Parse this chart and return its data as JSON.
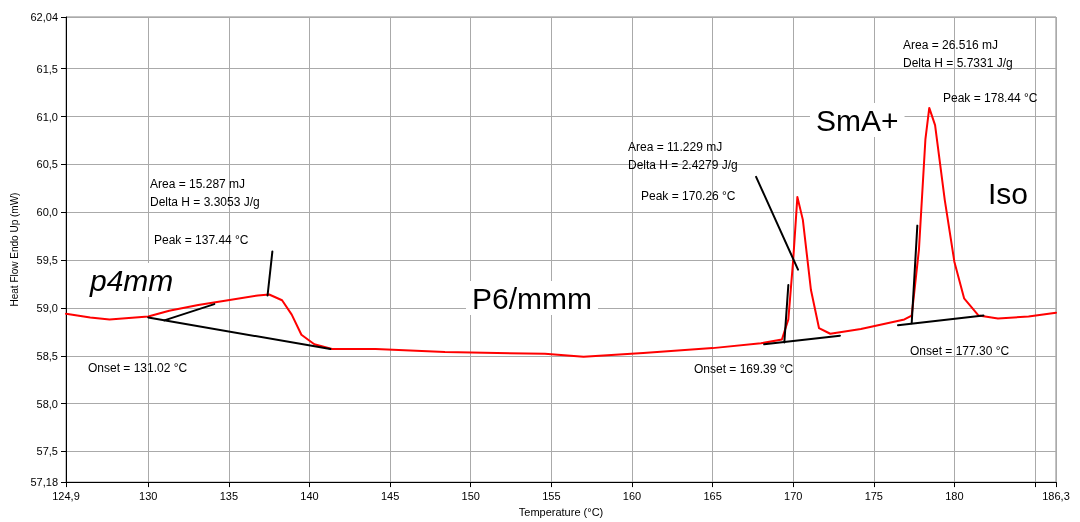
{
  "chart_data": {
    "type": "line",
    "xlabel": "Temperature (°C)",
    "ylabel": "Heat Flow Endo Up (mW)",
    "xlim": [
      124.9,
      186.3
    ],
    "ylim": [
      57.18,
      62.04
    ],
    "xticks": [
      {
        "value": 124.9,
        "label": "124,9"
      },
      130,
      135,
      140,
      145,
      150,
      155,
      160,
      165,
      170,
      175,
      180,
      {
        "value": 185,
        "label": null
      },
      {
        "value": 186.3,
        "label": "186,3"
      }
    ],
    "yticks": [
      {
        "value": 57.18,
        "label": "57,18"
      },
      {
        "value": 57.5,
        "label": "57,5"
      },
      {
        "value": 58,
        "label": "58,0"
      },
      {
        "value": 58.5,
        "label": "58,5"
      },
      {
        "value": 59,
        "label": "59,0"
      },
      {
        "value": 59.5,
        "label": "59,5"
      },
      {
        "value": 60,
        "label": "60,0"
      },
      {
        "value": 60.5,
        "label": "60,5"
      },
      {
        "value": 61,
        "label": "61,0"
      },
      {
        "value": 61.5,
        "label": "61,5"
      },
      {
        "value": 62.04,
        "label": "62,04"
      }
    ],
    "grid": true,
    "marker": "none",
    "line_style": "solid",
    "series": [
      {
        "color": "#ff0000",
        "x": [
          124.9,
          126.4,
          127.6,
          130.0,
          131.3,
          133.1,
          134.95,
          136.8,
          137.5,
          138.3,
          138.9,
          139.5,
          140.3,
          141.4,
          144.1,
          148.4,
          154.6,
          157.0,
          160.7,
          165.0,
          168.0,
          169.3,
          169.7,
          170.0,
          170.26,
          170.6,
          171.1,
          171.6,
          172.3,
          174.2,
          176.9,
          177.35,
          177.8,
          178.2,
          178.44,
          178.8,
          179.4,
          180.0,
          180.6,
          181.5,
          182.7,
          184.6,
          186.3
        ],
        "values": [
          58.94,
          58.9,
          58.88,
          58.91,
          58.97,
          59.03,
          59.08,
          59.13,
          59.14,
          59.08,
          58.93,
          58.72,
          58.62,
          58.57,
          58.57,
          58.54,
          58.52,
          58.49,
          58.53,
          58.58,
          58.63,
          58.67,
          58.88,
          59.5,
          60.16,
          59.92,
          59.19,
          58.79,
          58.73,
          58.78,
          58.88,
          58.92,
          59.61,
          60.76,
          61.09,
          60.91,
          60.13,
          59.48,
          59.1,
          58.92,
          58.89,
          58.91,
          58.95
        ]
      },
      {
        "color": "#000000",
        "x": [
          130.0,
          141.3
        ],
        "values": [
          58.9,
          58.57
        ]
      },
      {
        "color": "#000000",
        "x": [
          131.0,
          134.1
        ],
        "values": [
          58.87,
          59.04
        ]
      },
      {
        "color": "#000000",
        "x": [
          137.4,
          137.7
        ],
        "values": [
          59.13,
          59.59
        ]
      },
      {
        "color": "#000000",
        "x": [
          168.2,
          172.9
        ],
        "values": [
          58.62,
          58.71
        ]
      },
      {
        "color": "#000000",
        "x": [
          169.45,
          169.7
        ],
        "values": [
          58.64,
          59.24
        ]
      },
      {
        "color": "#000000",
        "x": [
          167.7,
          170.3
        ],
        "values": [
          60.37,
          59.4
        ]
      },
      {
        "color": "#000000",
        "x": [
          176.5,
          181.8
        ],
        "values": [
          58.82,
          58.92
        ]
      },
      {
        "color": "#000000",
        "x": [
          177.35,
          177.7
        ],
        "values": [
          58.84,
          59.86
        ]
      }
    ],
    "annotations": [
      "Area = 15.287 mJ",
      "Delta H = 3.3053 J/g",
      "Peak = 137.44 °C",
      "Onset = 131.02 °C",
      "p4mm",
      "P6/mmm",
      "Area = 11.229 mJ",
      "Delta H = 2.4279 J/g",
      "Peak = 170.26 °C",
      "Onset = 169.39 °C",
      "SmA+",
      "Area = 26.516 mJ",
      "Delta H = 5.7331 J/g",
      "Peak = 178.44 °C",
      "Iso",
      "Onset = 177.30 °C"
    ]
  }
}
